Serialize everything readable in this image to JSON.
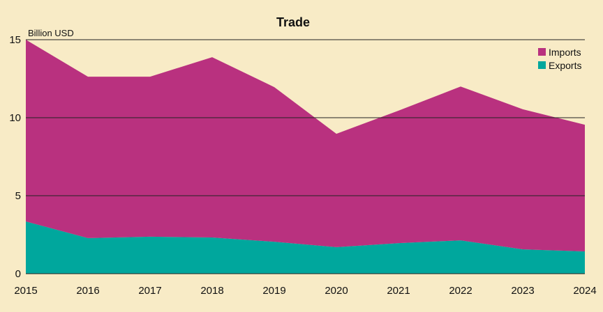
{
  "chart_data": {
    "type": "area",
    "stacked": true,
    "title": "Trade",
    "ylabel": "Billion USD",
    "xlabel": "",
    "x": [
      2015,
      2016,
      2017,
      2018,
      2019,
      2020,
      2021,
      2022,
      2023,
      2024
    ],
    "x_tick_labels": [
      "2015",
      "2016",
      "2017",
      "2018",
      "2019",
      "2020",
      "2021",
      "2022",
      "2023",
      "2024"
    ],
    "y_tick_labels": [
      "0",
      "5",
      "10",
      "15"
    ],
    "y_ticks": [
      0,
      5,
      10,
      15
    ],
    "ylim": [
      0,
      15
    ],
    "grid": true,
    "legend_position": "top-right",
    "series": [
      {
        "name": "Exports",
        "color": "#00a79d",
        "values": [
          3.35,
          2.28,
          2.37,
          2.32,
          2.05,
          1.7,
          1.96,
          2.14,
          1.56,
          1.43
        ]
      },
      {
        "name": "Imports",
        "color": "#b9317f",
        "values": [
          11.65,
          10.35,
          10.26,
          11.56,
          9.91,
          7.27,
          8.49,
          9.86,
          8.98,
          8.12
        ]
      }
    ],
    "legend": [
      "Imports",
      "Exports"
    ],
    "background": "#f8ebc6"
  }
}
